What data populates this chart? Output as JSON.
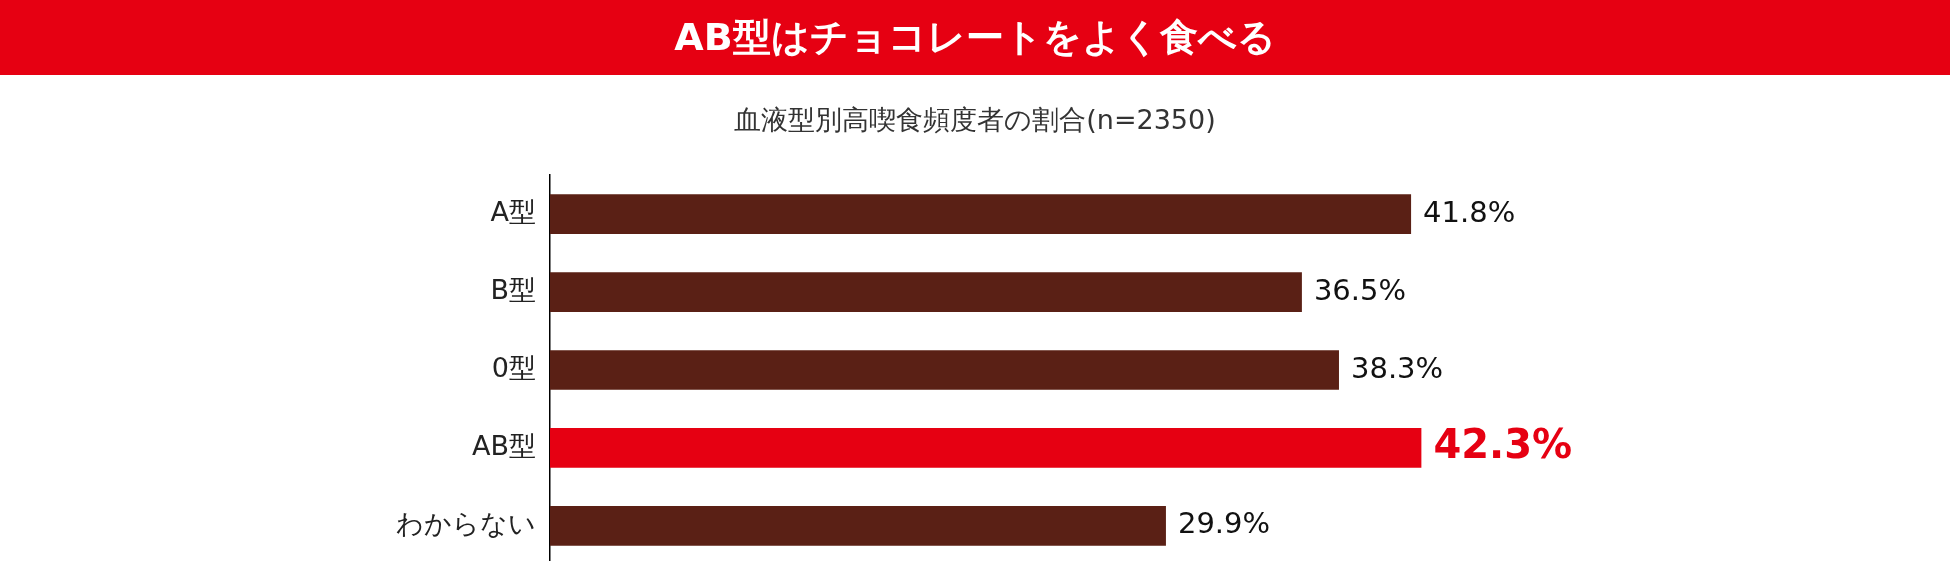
{
  "chart_data": {
    "type": "bar",
    "orientation": "horizontal",
    "title": "AB型はチョコレートをよく食べる",
    "subtitle": "血液型別高喫食頻度者の割合(n=2350)",
    "categories": [
      "A型",
      "B型",
      "0型",
      "AB型",
      "わからない"
    ],
    "values": [
      41.8,
      36.5,
      38.3,
      42.3,
      29.9
    ],
    "colors": [
      "#5a2015",
      "#5a2015",
      "#5a2015",
      "#e60012",
      "#5a2015"
    ],
    "value_labels": [
      "41.8%",
      "36.5%",
      "38.3%",
      "42.3%",
      "29.9%"
    ],
    "legend": false,
    "tick_labels": "y"
  }
}
